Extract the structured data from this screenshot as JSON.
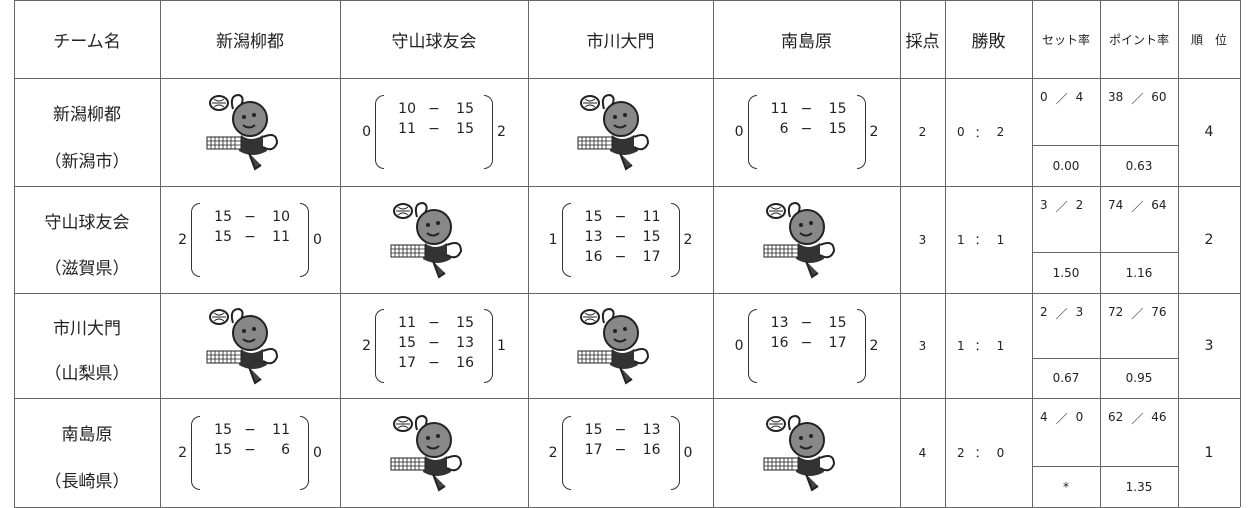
{
  "columns": [
    "チーム名",
    "新潟柳都",
    "守山球友会",
    "市川大門",
    "南島原",
    "採点",
    "勝敗",
    "セット率",
    "ポイント率",
    "順　位"
  ],
  "marks": {
    "dash": "−",
    "slash": "／",
    "colon": "："
  },
  "teams": [
    {
      "name": "新潟柳都",
      "home": "（新潟市）",
      "results": [
        null,
        {
          "won": 0,
          "scores": [
            [
              10,
              15
            ],
            [
              11,
              15
            ]
          ],
          "lost": 2
        },
        null,
        {
          "won": 0,
          "scores": [
            [
              11,
              15
            ],
            [
              6,
              15
            ]
          ],
          "lost": 2
        }
      ],
      "points": 2,
      "record": [
        0,
        2
      ],
      "sets": [
        0,
        4
      ],
      "set_rate": "0.00",
      "score_points": [
        38,
        60
      ],
      "point_rate": "0.63",
      "rank": 4
    },
    {
      "name": "守山球友会",
      "home": "（滋賀県）",
      "results": [
        {
          "won": 2,
          "scores": [
            [
              15,
              10
            ],
            [
              15,
              11
            ]
          ],
          "lost": 0
        },
        null,
        {
          "won": 1,
          "scores": [
            [
              15,
              11
            ],
            [
              13,
              15
            ],
            [
              16,
              17
            ]
          ],
          "lost": 2
        },
        null
      ],
      "points": 3,
      "record": [
        1,
        1
      ],
      "sets": [
        3,
        2
      ],
      "set_rate": "1.50",
      "score_points": [
        74,
        64
      ],
      "point_rate": "1.16",
      "rank": 2
    },
    {
      "name": "市川大門",
      "home": "（山梨県）",
      "results": [
        null,
        {
          "won": 2,
          "scores": [
            [
              11,
              15
            ],
            [
              15,
              13
            ],
            [
              17,
              16
            ]
          ],
          "lost": 1
        },
        null,
        {
          "won": 0,
          "scores": [
            [
              13,
              15
            ],
            [
              16,
              17
            ]
          ],
          "lost": 2
        }
      ],
      "points": 3,
      "record": [
        1,
        1
      ],
      "sets": [
        2,
        3
      ],
      "set_rate": "0.67",
      "score_points": [
        72,
        76
      ],
      "point_rate": "0.95",
      "rank": 3
    },
    {
      "name": "南島原",
      "home": "（長崎県）",
      "results": [
        {
          "won": 2,
          "scores": [
            [
              15,
              11
            ],
            [
              15,
              6
            ]
          ],
          "lost": 0
        },
        null,
        {
          "won": 2,
          "scores": [
            [
              15,
              13
            ],
            [
              17,
              16
            ]
          ],
          "lost": 0
        },
        null
      ],
      "points": 4,
      "record": [
        2,
        0
      ],
      "sets": [
        4,
        0
      ],
      "set_rate": "*",
      "score_points": [
        62,
        46
      ],
      "point_rate": "1.35",
      "rank": 1
    }
  ]
}
